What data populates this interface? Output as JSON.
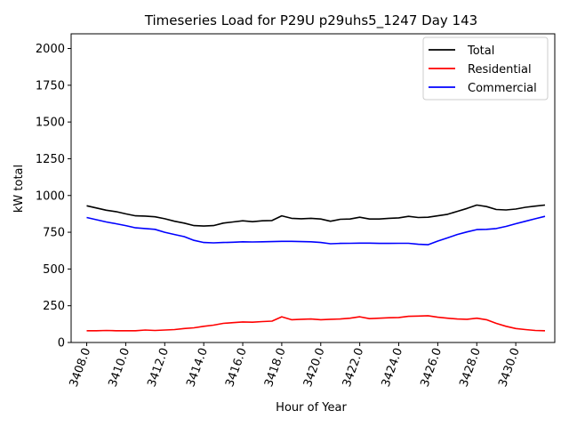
{
  "chart_data": {
    "type": "line",
    "title": "Timeseries Load for P29U p29uhs5_1247  Day 143",
    "xlabel": "Hour of Year",
    "ylabel": "kW total",
    "xlim": [
      3407.2,
      3432.0
    ],
    "ylim": [
      0,
      2100
    ],
    "xticks": [
      3408,
      3410,
      3412,
      3414,
      3416,
      3418,
      3420,
      3422,
      3424,
      3426,
      3428,
      3430
    ],
    "xtick_labels": [
      "3408.0",
      "3410.0",
      "3412.0",
      "3414.0",
      "3416.0",
      "3418.0",
      "3420.0",
      "3422.0",
      "3424.0",
      "3426.0",
      "3428.0",
      "3430.0"
    ],
    "yticks": [
      0,
      250,
      500,
      750,
      1000,
      1250,
      1500,
      1750,
      2000
    ],
    "ytick_labels": [
      "0",
      "250",
      "500",
      "750",
      "1000",
      "1250",
      "1500",
      "1750",
      "2000"
    ],
    "legend_position": "top-right",
    "series": [
      {
        "name": "Total",
        "color": "#000000",
        "x": [
          3408.0,
          3408.5,
          3409.0,
          3409.5,
          3410.0,
          3410.5,
          3411.0,
          3411.5,
          3412.0,
          3412.5,
          3413.0,
          3413.5,
          3414.0,
          3414.5,
          3415.0,
          3415.5,
          3416.0,
          3416.5,
          3417.0,
          3417.5,
          3418.0,
          3418.5,
          3419.0,
          3419.5,
          3420.0,
          3420.5,
          3421.0,
          3421.5,
          3422.0,
          3422.5,
          3423.0,
          3423.5,
          3424.0,
          3424.5,
          3425.0,
          3425.5,
          3426.0,
          3426.5,
          3427.0,
          3427.5,
          3428.0,
          3428.5,
          3429.0,
          3429.5,
          3430.0,
          3430.5,
          3431.0,
          3431.5
        ],
        "values": [
          930,
          915,
          900,
          890,
          875,
          862,
          860,
          855,
          842,
          825,
          812,
          795,
          792,
          795,
          812,
          820,
          828,
          822,
          828,
          830,
          862,
          845,
          842,
          845,
          840,
          825,
          838,
          840,
          852,
          840,
          840,
          845,
          848,
          858,
          850,
          852,
          862,
          872,
          892,
          912,
          935,
          925,
          905,
          902,
          908,
          920,
          928,
          935
        ]
      },
      {
        "name": "Residential",
        "color": "#ff0000",
        "x": [
          3408.0,
          3408.5,
          3409.0,
          3409.5,
          3410.0,
          3410.5,
          3411.0,
          3411.5,
          3412.0,
          3412.5,
          3413.0,
          3413.5,
          3414.0,
          3414.5,
          3415.0,
          3415.5,
          3416.0,
          3416.5,
          3417.0,
          3417.5,
          3418.0,
          3418.5,
          3419.0,
          3419.5,
          3420.0,
          3420.5,
          3421.0,
          3421.5,
          3422.0,
          3422.5,
          3423.0,
          3423.5,
          3424.0,
          3424.5,
          3425.0,
          3425.5,
          3426.0,
          3426.5,
          3427.0,
          3427.5,
          3428.0,
          3428.5,
          3429.0,
          3429.5,
          3430.0,
          3430.5,
          3431.0,
          3431.5
        ],
        "values": [
          80,
          80,
          82,
          80,
          80,
          80,
          85,
          82,
          85,
          88,
          95,
          100,
          110,
          118,
          130,
          135,
          140,
          138,
          142,
          145,
          175,
          155,
          158,
          160,
          155,
          158,
          160,
          165,
          175,
          162,
          165,
          168,
          170,
          178,
          180,
          182,
          172,
          165,
          160,
          158,
          165,
          155,
          130,
          110,
          95,
          88,
          82,
          80
        ]
      },
      {
        "name": "Commercial",
        "color": "#0000ff",
        "x": [
          3408.0,
          3408.5,
          3409.0,
          3409.5,
          3410.0,
          3410.5,
          3411.0,
          3411.5,
          3412.0,
          3412.5,
          3413.0,
          3413.5,
          3414.0,
          3414.5,
          3415.0,
          3415.5,
          3416.0,
          3416.5,
          3417.0,
          3417.5,
          3418.0,
          3418.5,
          3419.0,
          3419.5,
          3420.0,
          3420.5,
          3421.0,
          3421.5,
          3422.0,
          3422.5,
          3423.0,
          3423.5,
          3424.0,
          3424.5,
          3425.0,
          3425.5,
          3426.0,
          3426.5,
          3427.0,
          3427.5,
          3428.0,
          3428.5,
          3429.0,
          3429.5,
          3430.0,
          3430.5,
          3431.0,
          3431.5
        ],
        "values": [
          850,
          835,
          820,
          808,
          795,
          780,
          775,
          770,
          750,
          735,
          720,
          695,
          680,
          678,
          680,
          682,
          685,
          684,
          685,
          686,
          688,
          688,
          686,
          685,
          680,
          672,
          674,
          675,
          676,
          676,
          674,
          674,
          675,
          675,
          668,
          665,
          690,
          712,
          735,
          752,
          768,
          770,
          775,
          790,
          808,
          825,
          842,
          858
        ]
      }
    ]
  }
}
